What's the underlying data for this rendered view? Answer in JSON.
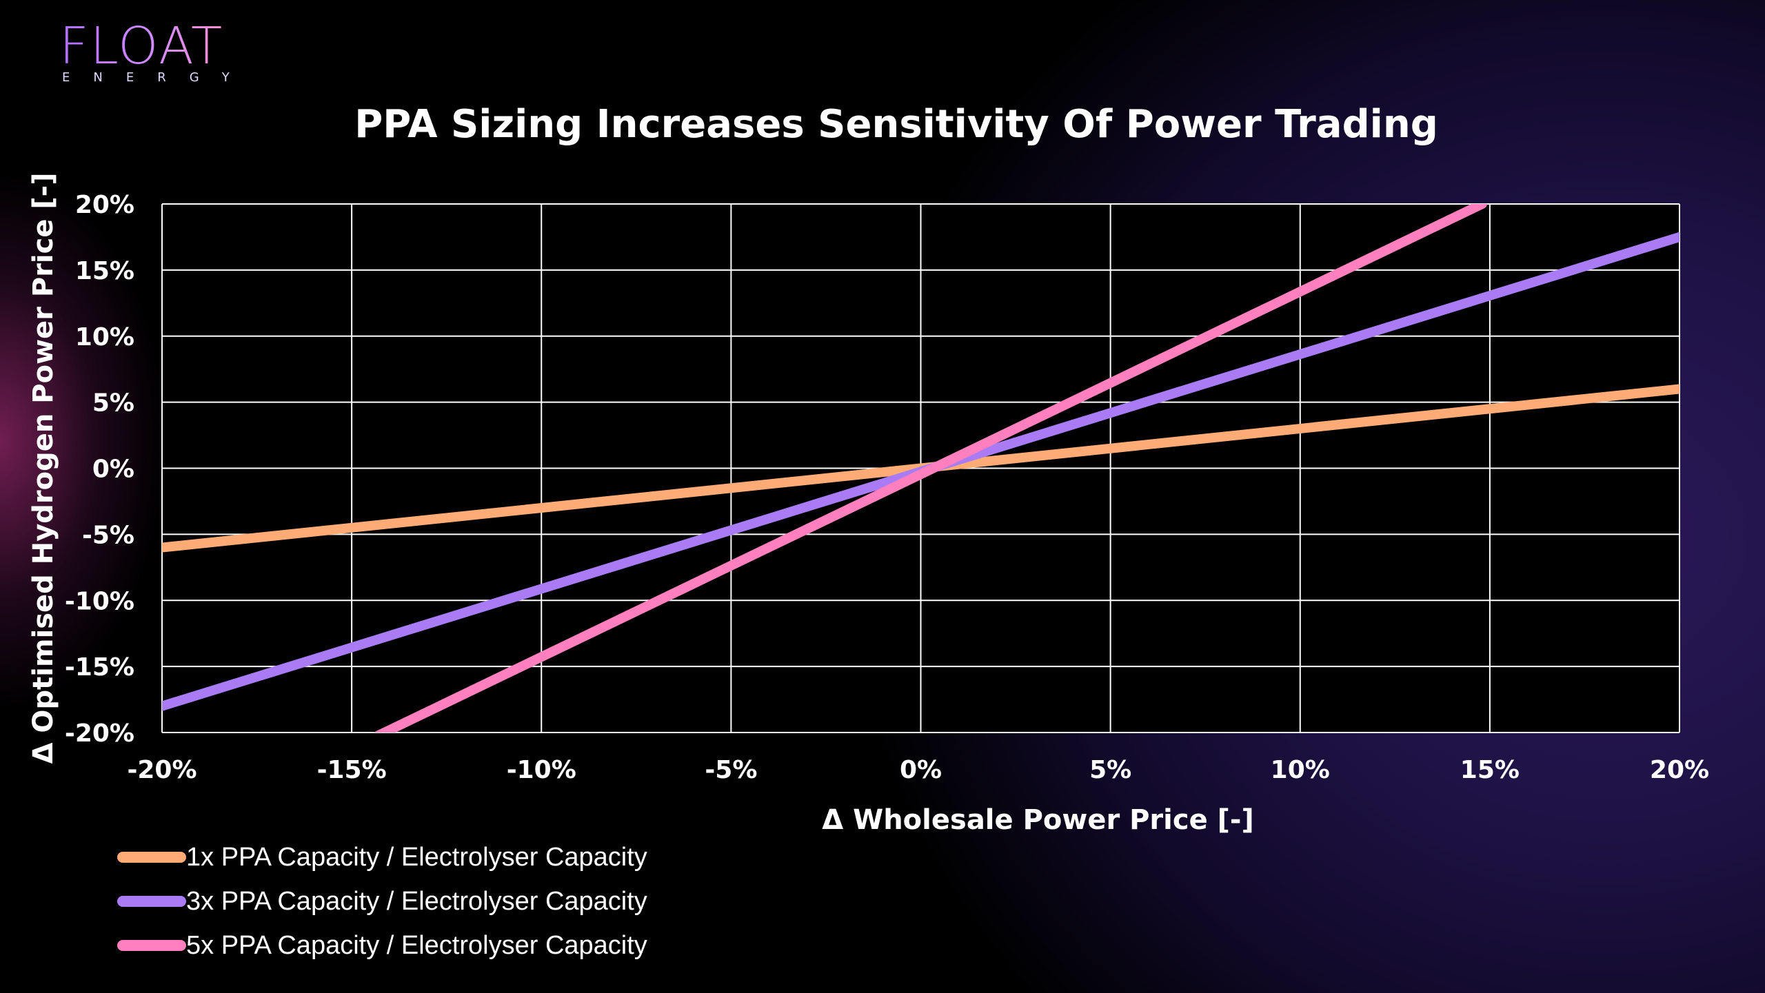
{
  "logo": {
    "word": "FLOAT",
    "sub": "ENERGY"
  },
  "title": "PPA Sizing Increases Sensitivity Of Power Trading",
  "colors": {
    "series1": "#FFAB76",
    "series2": "#A97BF5",
    "series3": "#FF7FBF",
    "grid": "#ffffff",
    "text": "#ffffff"
  },
  "chart_data": {
    "type": "line",
    "title": "PPA Sizing Increases Sensitivity Of Power Trading",
    "xlabel": "Δ Wholesale Power Price [-]",
    "ylabel": "Δ Optimised Hydrogen Power Price [-]",
    "xlim": [
      -20,
      20
    ],
    "ylim": [
      -20,
      20
    ],
    "x_ticks": [
      -20,
      -15,
      -10,
      -5,
      0,
      5,
      10,
      15,
      20
    ],
    "y_ticks": [
      -20,
      -15,
      -10,
      -5,
      0,
      5,
      10,
      15,
      20
    ],
    "x_tick_labels": [
      "-20%",
      "-15%",
      "-10%",
      "-5%",
      "0%",
      "5%",
      "10%",
      "15%",
      "20%"
    ],
    "y_tick_labels": [
      "-20%",
      "-15%",
      "-10%",
      "-5%",
      "0%",
      "5%",
      "10%",
      "15%",
      "20%"
    ],
    "grid": true,
    "legend_position": "bottom-left",
    "series": [
      {
        "name": "1x PPA Capacity / Electrolyser Capacity",
        "color": "#FFAB76",
        "x": [
          -20,
          20
        ],
        "y": [
          -6,
          6
        ]
      },
      {
        "name": "3x PPA Capacity / Electrolyser Capacity",
        "color": "#A97BF5",
        "x": [
          -20,
          20
        ],
        "y": [
          -18,
          17.5
        ]
      },
      {
        "name": "5x PPA Capacity / Electrolyser Capacity",
        "color": "#FF7FBF",
        "x": [
          -14.5,
          14.8
        ],
        "y": [
          -20.5,
          20
        ]
      }
    ]
  }
}
